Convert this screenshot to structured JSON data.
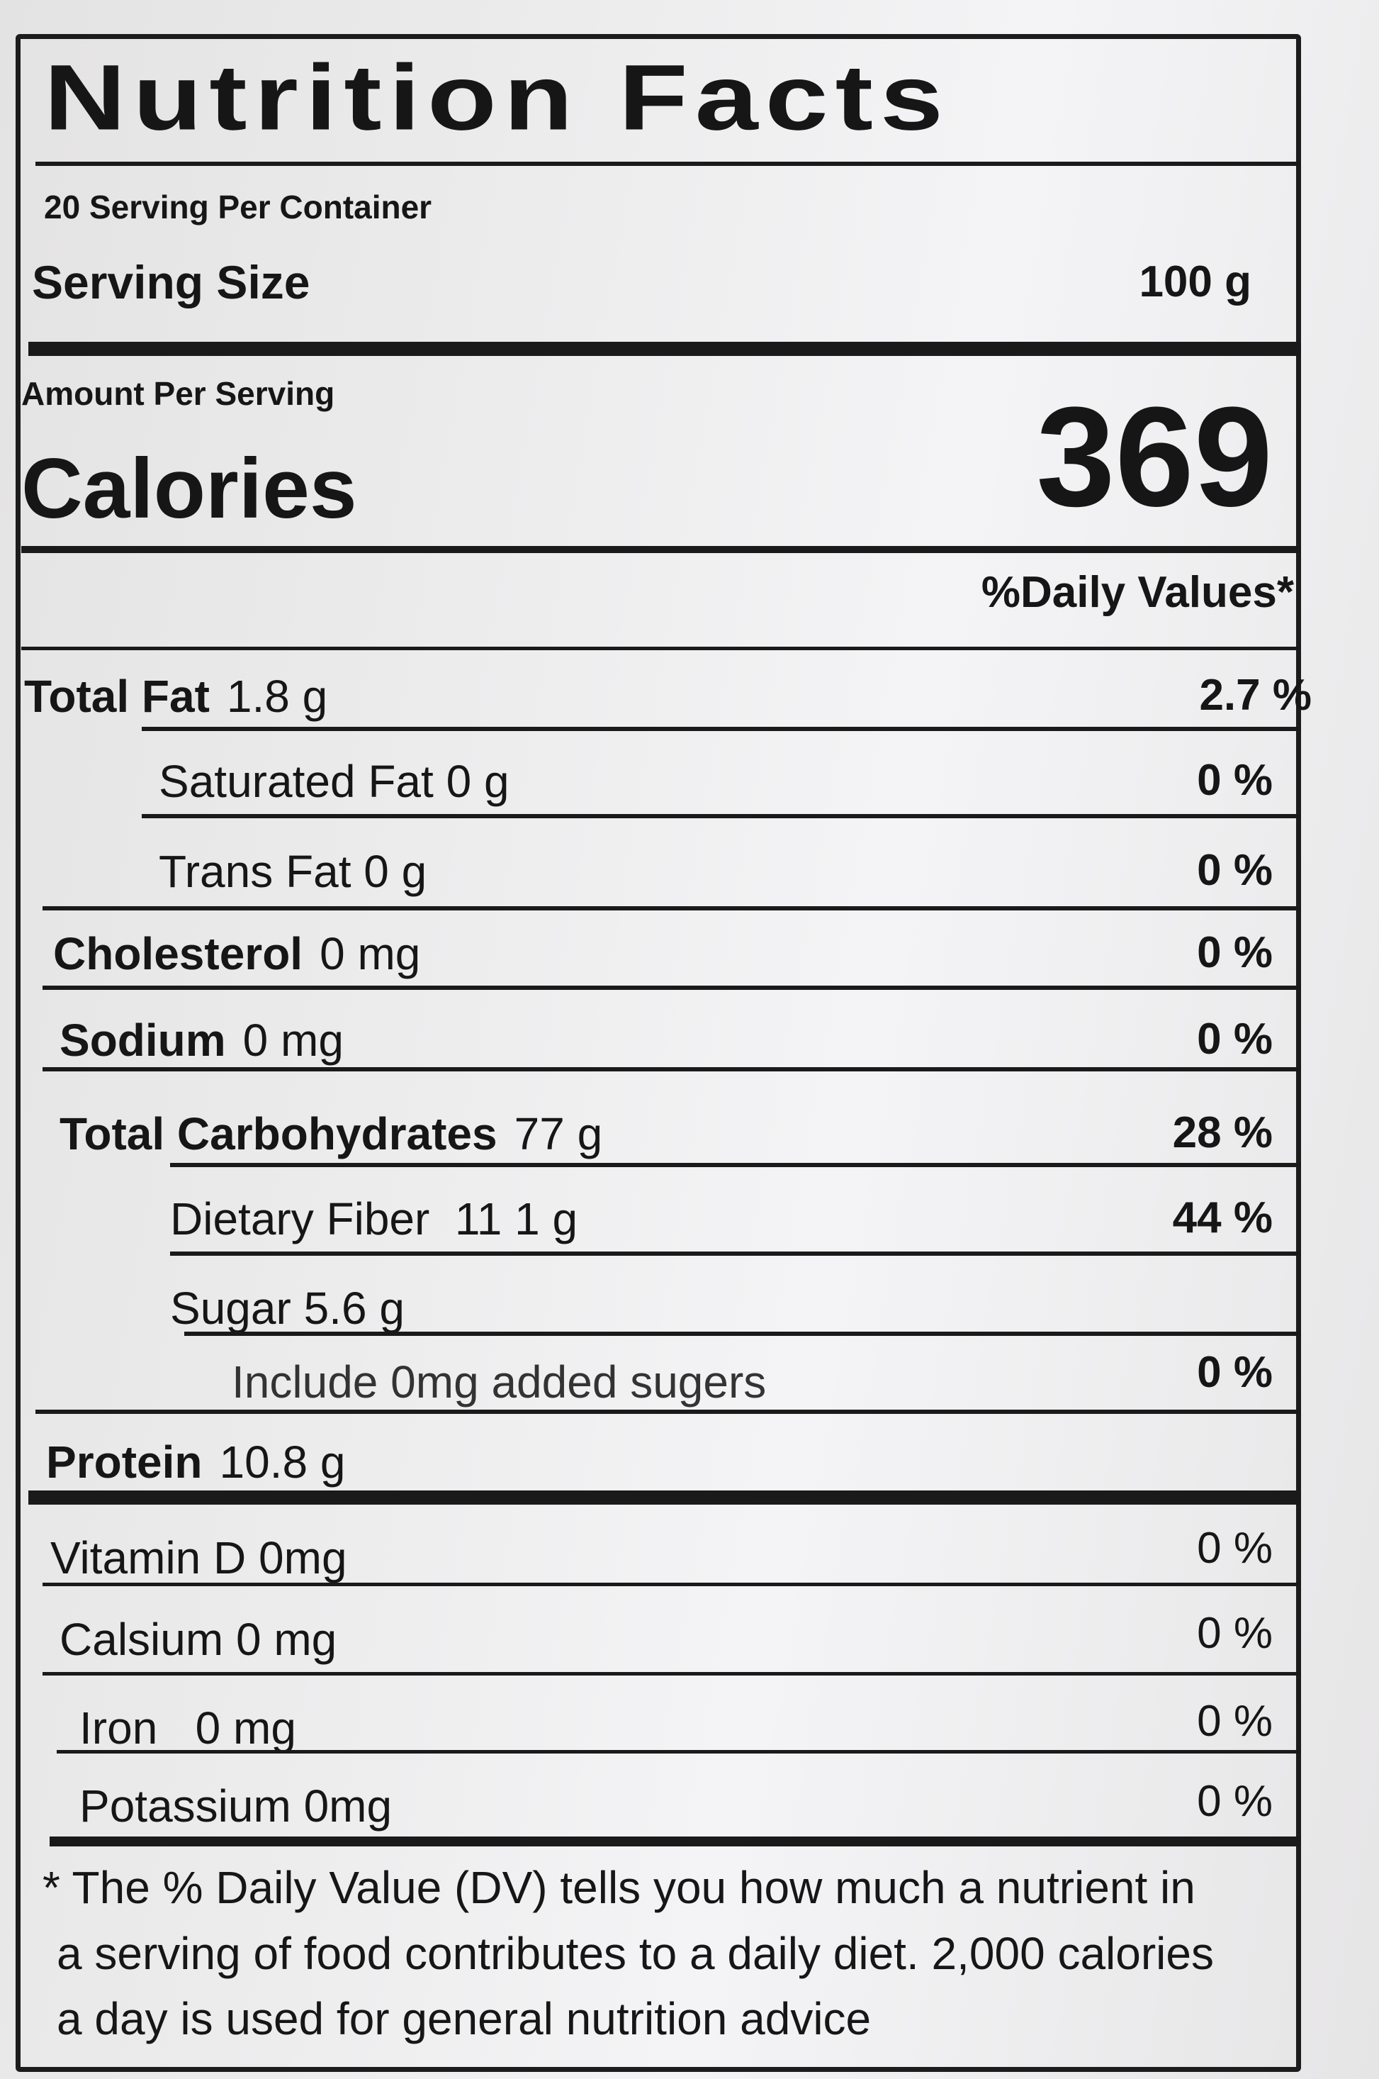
{
  "label": {
    "title": "Nutrition Facts",
    "servings_per_container": "20 Serving Per Container",
    "serving_size_label": "Serving Size",
    "serving_size_value": "100 g",
    "amount_per_serving": "Amount Per Serving",
    "calories_label": "Calories",
    "calories_value": "369",
    "daily_values_header": "%Daily Values*",
    "nutrients": [
      {
        "name": "Total Fat",
        "amount": "1.8 g",
        "dv": "2.7 %"
      },
      {
        "name": "Saturated Fat",
        "amount": "0 g",
        "dv": "0 %"
      },
      {
        "name": "Trans Fat",
        "amount": "0 g",
        "dv": "0 %"
      },
      {
        "name": "Cholesterol",
        "amount": "0 mg",
        "dv": "0 %"
      },
      {
        "name": "Sodium",
        "amount": "0 mg",
        "dv": "0 %"
      },
      {
        "name": "Total Carbohydrates",
        "amount": "77 g",
        "dv": "28 %"
      },
      {
        "name": "Dietary Fiber",
        "amount": "11 1 g",
        "dv": "44 %"
      },
      {
        "name": "Sugar",
        "amount": "5.6 g",
        "dv": ""
      },
      {
        "name": "Include 0mg added sugers",
        "amount": "",
        "dv": "0 %"
      },
      {
        "name": "Protein",
        "amount": "10.8 g",
        "dv": ""
      }
    ],
    "vitamins": [
      {
        "name": "Vitamin  D 0mg",
        "dv": "0 %"
      },
      {
        "name": "Calsium 0 mg",
        "dv": "0 %"
      },
      {
        "name": "Iron   0 mg",
        "dv": "0 %"
      },
      {
        "name": "Potassium 0mg",
        "dv": "0 %"
      }
    ],
    "footnote": [
      "* The % Daily Value (DV) tells you how much a nutrient in",
      "a serving of food contributes to a daily diet. 2,000 calories",
      "a day is used for general nutrition advice"
    ]
  }
}
